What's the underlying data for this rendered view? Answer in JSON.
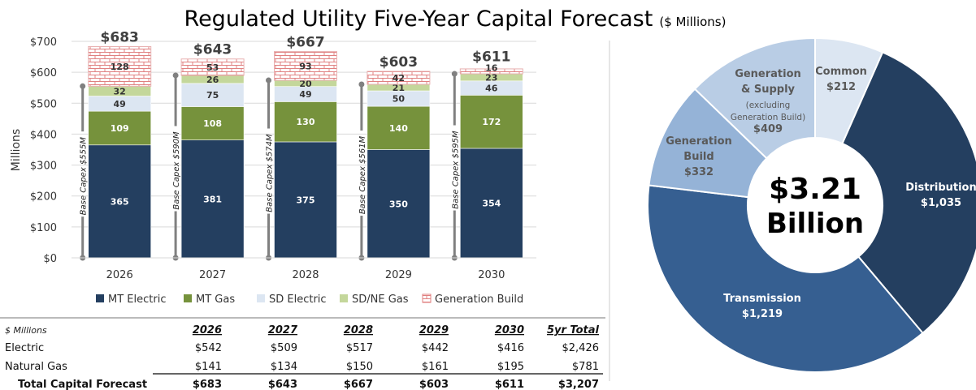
{
  "title": "Regulated Utility Five-Year Capital Forecast",
  "title_unit": "($ Millions)",
  "chart_data": [
    {
      "type": "bar",
      "stacked": true,
      "ylabel": "Millions",
      "ylim": [
        0,
        700
      ],
      "yticks": [
        "$0",
        "$100",
        "$200",
        "$300",
        "$400",
        "$500",
        "$600",
        "$700"
      ],
      "grid": true,
      "legend_position": "bottom",
      "categories": [
        "2026",
        "2027",
        "2028",
        "2029",
        "2030"
      ],
      "series": [
        {
          "name": "MT Electric",
          "values": [
            365,
            381,
            375,
            350,
            354
          ],
          "color": "#243f60"
        },
        {
          "name": "MT Gas",
          "values": [
            109,
            108,
            130,
            140,
            172
          ],
          "color": "#76923c"
        },
        {
          "name": "SD Electric",
          "values": [
            49,
            75,
            49,
            50,
            46
          ],
          "color": "#dce6f2"
        },
        {
          "name": "SD/NE Gas",
          "values": [
            32,
            26,
            20,
            21,
            23
          ],
          "color": "#c4d79b"
        },
        {
          "name": "Generation Build",
          "values": [
            128,
            53,
            93,
            42,
            16
          ],
          "color": "#e6a0a0",
          "pattern": "brick"
        }
      ],
      "totals": [
        "$683",
        "$643",
        "$667",
        "$603",
        "$611"
      ],
      "base_capex": {
        "values": [
          555,
          590,
          574,
          561,
          595
        ],
        "labels": [
          "Base Capex $555M",
          "Base Capex $590M",
          "Base Capex $574M",
          "Base Capex $561M",
          "Base Capex $595M"
        ]
      }
    },
    {
      "type": "pie",
      "donut": true,
      "center_label": [
        "$3.21",
        "Billion"
      ],
      "slices": [
        {
          "name": "Common",
          "label": [
            "Common",
            "$212"
          ],
          "value": 212,
          "color": "#dce6f2",
          "text_color": "#595959"
        },
        {
          "name": "Distribution",
          "label": [
            "Distribution",
            "$1,035"
          ],
          "value": 1035,
          "color": "#243f60",
          "text_color": "#ffffff"
        },
        {
          "name": "Transmission",
          "label": [
            "Transmission",
            "$1,219"
          ],
          "value": 1219,
          "color": "#365f91",
          "text_color": "#ffffff"
        },
        {
          "name": "Generation Build",
          "label": [
            "Generation",
            "Build",
            "$332"
          ],
          "value": 332,
          "color": "#95b3d7",
          "text_color": "#595959"
        },
        {
          "name": "Generation & Supply",
          "label": [
            "Generation",
            "& Supply",
            "(excluding",
            "Generation Build)",
            "$409"
          ],
          "value": 409,
          "color": "#b9cde5",
          "text_color": "#595959"
        }
      ]
    }
  ],
  "table": {
    "unit_label": "$ Millions",
    "columns": [
      "2026",
      "2027",
      "2028",
      "2029",
      "2030",
      "5yr Total"
    ],
    "rows": [
      {
        "label": "Electric",
        "values": [
          "$542",
          "$509",
          "$517",
          "$442",
          "$416",
          "$2,426"
        ]
      },
      {
        "label": "Natural Gas",
        "values": [
          "$141",
          "$134",
          "$150",
          "$161",
          "$195",
          "$781"
        ]
      },
      {
        "label": "Total Capital Forecast",
        "values": [
          "$683",
          "$643",
          "$667",
          "$603",
          "$611",
          "$3,207"
        ],
        "bold": true
      }
    ]
  }
}
